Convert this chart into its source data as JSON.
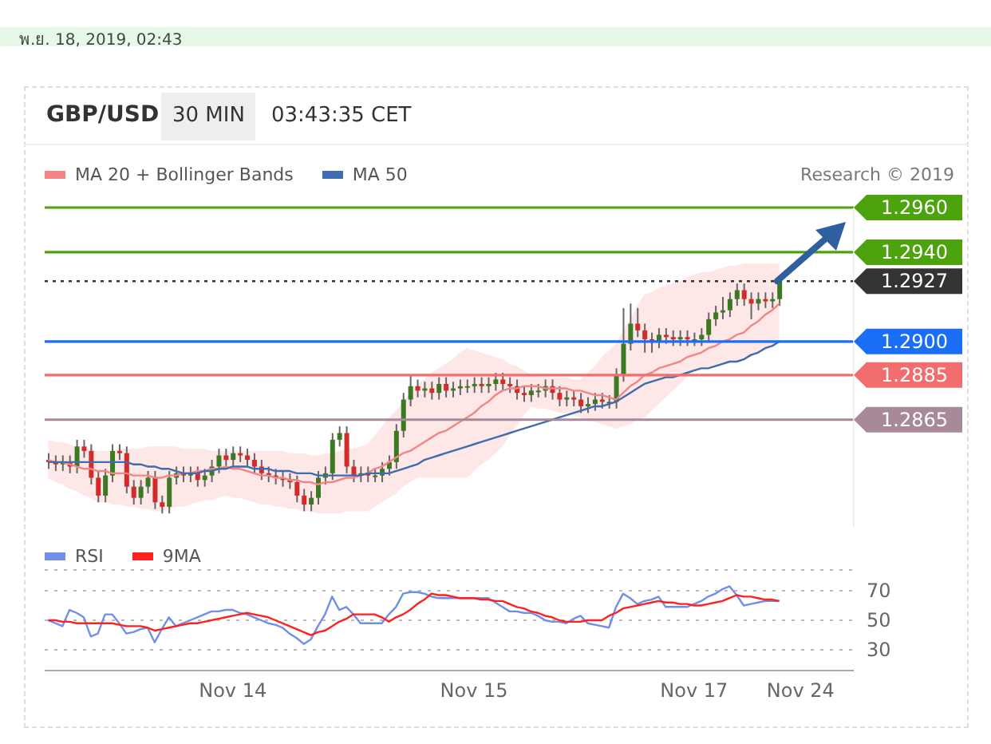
{
  "chart_data": [
    {
      "type": "candlestick",
      "title": "GBP/USD",
      "subtitle": "30 MIN",
      "annotations": [
        "พ.ย. 18, 2019, 02:43",
        "03:43:35 CET",
        "Research © 2019"
      ],
      "categories": [
        null,
        null,
        null,
        null,
        null,
        null,
        null,
        null,
        null,
        null,
        null,
        null,
        null,
        null,
        null,
        null,
        null,
        null,
        null,
        null,
        null,
        null,
        null,
        null,
        null,
        null,
        null,
        null,
        null,
        null,
        null,
        null,
        null,
        null,
        null,
        null,
        null,
        null,
        null,
        null,
        null,
        null,
        null,
        null,
        null,
        null,
        null,
        null,
        null,
        null,
        null,
        null,
        null,
        null,
        null,
        null,
        null,
        null,
        null,
        null,
        null,
        null,
        null,
        null,
        null,
        null,
        null,
        null,
        null,
        null,
        null,
        null,
        null,
        null,
        null,
        null,
        null,
        null,
        null,
        null,
        null,
        null,
        null,
        null,
        null,
        null,
        null,
        null,
        null,
        null,
        null,
        null,
        null,
        null,
        null,
        null,
        null,
        null,
        null,
        null,
        null,
        null,
        null,
        null,
        null,
        null,
        null,
        null,
        null,
        null,
        null,
        null,
        null,
        null
      ],
      "ohlc": [
        [
          1.2847,
          1.285,
          1.2843,
          1.2846
        ],
        [
          1.2846,
          1.2849,
          1.2842,
          1.2845
        ],
        [
          1.2845,
          1.2849,
          1.2842,
          1.2846
        ],
        [
          1.2846,
          1.2849,
          1.2841,
          1.2844
        ],
        [
          1.2844,
          1.2856,
          1.2841,
          1.2853
        ],
        [
          1.2853,
          1.2856,
          1.2848,
          1.2851
        ],
        [
          1.2851,
          1.2854,
          1.2836,
          1.2839
        ],
        [
          1.2839,
          1.2842,
          1.2828,
          1.2831
        ],
        [
          1.2831,
          1.2843,
          1.2828,
          1.284
        ],
        [
          1.284,
          1.2854,
          1.2837,
          1.2851
        ],
        [
          1.2851,
          1.2854,
          1.2847,
          1.285
        ],
        [
          1.285,
          1.2853,
          1.2832,
          1.2835
        ],
        [
          1.2835,
          1.2838,
          1.2827,
          1.283
        ],
        [
          1.283,
          1.2838,
          1.2827,
          1.2835
        ],
        [
          1.2835,
          1.2842,
          1.2832,
          1.2839
        ],
        [
          1.2839,
          1.2842,
          1.2825,
          1.2828
        ],
        [
          1.2828,
          1.2831,
          1.2823,
          1.2826
        ],
        [
          1.2826,
          1.2842,
          1.2823,
          1.2839
        ],
        [
          1.2839,
          1.2844,
          1.2836,
          1.2841
        ],
        [
          1.2841,
          1.2844,
          1.2837,
          1.284
        ],
        [
          1.284,
          1.2844,
          1.2837,
          1.2841
        ],
        [
          1.2841,
          1.2844,
          1.2835,
          1.2838
        ],
        [
          1.2838,
          1.2843,
          1.2835,
          1.284
        ],
        [
          1.284,
          1.2847,
          1.2837,
          1.2844
        ],
        [
          1.2844,
          1.2852,
          1.2841,
          1.2849
        ],
        [
          1.2849,
          1.2852,
          1.2844,
          1.2847
        ],
        [
          1.2847,
          1.2853,
          1.2844,
          1.285
        ],
        [
          1.285,
          1.2853,
          1.2846,
          1.2849
        ],
        [
          1.2849,
          1.2852,
          1.2844,
          1.2847
        ],
        [
          1.2847,
          1.285,
          1.2841,
          1.2844
        ],
        [
          1.2844,
          1.2847,
          1.2838,
          1.2841
        ],
        [
          1.2841,
          1.2844,
          1.2837,
          1.284
        ],
        [
          1.284,
          1.2843,
          1.2836,
          1.2839
        ],
        [
          1.2839,
          1.2842,
          1.2835,
          1.2838
        ],
        [
          1.2838,
          1.2841,
          1.2834,
          1.2837
        ],
        [
          1.2837,
          1.284,
          1.2828,
          1.2831
        ],
        [
          1.2831,
          1.2834,
          1.2824,
          1.2827
        ],
        [
          1.2827,
          1.2833,
          1.2824,
          1.283
        ],
        [
          1.283,
          1.2842,
          1.2827,
          1.2839
        ],
        [
          1.2839,
          1.2844,
          1.2836,
          1.2841
        ],
        [
          1.2841,
          1.2859,
          1.2838,
          1.2856
        ],
        [
          1.2856,
          1.2862,
          1.2853,
          1.2859
        ],
        [
          1.2859,
          1.2862,
          1.2841,
          1.2844
        ],
        [
          1.2844,
          1.2847,
          1.2837,
          1.284
        ],
        [
          1.284,
          1.2844,
          1.2837,
          1.2841
        ],
        [
          1.2841,
          1.2844,
          1.2837,
          1.284
        ],
        [
          1.284,
          1.2843,
          1.2837,
          1.284
        ],
        [
          1.284,
          1.2846,
          1.2837,
          1.2843
        ],
        [
          1.2843,
          1.2849,
          1.284,
          1.2846
        ],
        [
          1.2846,
          1.2863,
          1.2843,
          1.286
        ],
        [
          1.286,
          1.2877,
          1.2857,
          1.2874
        ],
        [
          1.2874,
          1.2885,
          1.2871,
          1.288
        ],
        [
          1.288,
          1.2883,
          1.2875,
          1.2878
        ],
        [
          1.2878,
          1.2882,
          1.2875,
          1.2879
        ],
        [
          1.2879,
          1.2882,
          1.2874,
          1.2877
        ],
        [
          1.2877,
          1.2884,
          1.2874,
          1.2881
        ],
        [
          1.2881,
          1.2884,
          1.2875,
          1.2878
        ],
        [
          1.2878,
          1.2882,
          1.2875,
          1.2879
        ],
        [
          1.2879,
          1.2883,
          1.2876,
          1.288
        ],
        [
          1.288,
          1.2883,
          1.2877,
          1.288
        ],
        [
          1.288,
          1.2884,
          1.2877,
          1.2881
        ],
        [
          1.2881,
          1.2884,
          1.2877,
          1.288
        ],
        [
          1.288,
          1.2884,
          1.2877,
          1.2881
        ],
        [
          1.2881,
          1.2886,
          1.2878,
          1.2883
        ],
        [
          1.2883,
          1.2886,
          1.2878,
          1.2881
        ],
        [
          1.2881,
          1.2884,
          1.2877,
          1.288
        ],
        [
          1.288,
          1.2883,
          1.2874,
          1.2877
        ],
        [
          1.2877,
          1.288,
          1.2873,
          1.2876
        ],
        [
          1.2876,
          1.2881,
          1.2873,
          1.2878
        ],
        [
          1.2878,
          1.2881,
          1.2875,
          1.2878
        ],
        [
          1.2878,
          1.2883,
          1.2875,
          1.288
        ],
        [
          1.288,
          1.2883,
          1.2874,
          1.2877
        ],
        [
          1.2877,
          1.288,
          1.2871,
          1.2874
        ],
        [
          1.2874,
          1.2878,
          1.2871,
          1.2875
        ],
        [
          1.2875,
          1.2878,
          1.2871,
          1.2874
        ],
        [
          1.2874,
          1.2877,
          1.2868,
          1.2871
        ],
        [
          1.2871,
          1.2875,
          1.2868,
          1.2872
        ],
        [
          1.2872,
          1.2877,
          1.2869,
          1.2874
        ],
        [
          1.2874,
          1.2877,
          1.287,
          1.2873
        ],
        [
          1.2873,
          1.2876,
          1.287,
          1.2873
        ],
        [
          1.2873,
          1.2888,
          1.287,
          1.2885
        ],
        [
          1.2885,
          1.2915,
          1.2882,
          1.2899
        ],
        [
          1.2899,
          1.2917,
          1.2896,
          1.2908
        ],
        [
          1.2908,
          1.2915,
          1.2902,
          1.2905
        ],
        [
          1.2905,
          1.2908,
          1.2895,
          1.2901
        ],
        [
          1.2901,
          1.2904,
          1.2895,
          1.29
        ],
        [
          1.29,
          1.2906,
          1.2897,
          1.2903
        ],
        [
          1.2903,
          1.2906,
          1.2899,
          1.2902
        ],
        [
          1.2902,
          1.2905,
          1.2898,
          1.2901
        ],
        [
          1.2901,
          1.2905,
          1.2898,
          1.2902
        ],
        [
          1.2902,
          1.2905,
          1.2898,
          1.2901
        ],
        [
          1.2901,
          1.2904,
          1.2898,
          1.2901
        ],
        [
          1.2901,
          1.2906,
          1.2898,
          1.2903
        ],
        [
          1.2903,
          1.2913,
          1.29,
          1.291
        ],
        [
          1.291,
          1.2916,
          1.2907,
          1.2913
        ],
        [
          1.2913,
          1.292,
          1.291,
          1.2914
        ],
        [
          1.2914,
          1.2922,
          1.2911,
          1.2919
        ],
        [
          1.2919,
          1.2926,
          1.2916,
          1.2923
        ],
        [
          1.2923,
          1.2926,
          1.2916,
          1.2919
        ],
        [
          1.2919,
          1.2922,
          1.291,
          1.2917
        ],
        [
          1.2917,
          1.2922,
          1.2914,
          1.2919
        ],
        [
          1.2919,
          1.2922,
          1.2915,
          1.2918
        ],
        [
          1.2918,
          1.2922,
          1.2915,
          1.2919
        ],
        [
          1.2919,
          1.2929,
          1.2916,
          1.2927
        ],
        null,
        null,
        null,
        null,
        null,
        null,
        null,
        null,
        null,
        null
      ],
      "series": [
        {
          "type": "line",
          "name": "MA 20 + Bollinger Bands",
          "color": "#f38585",
          "values": [
            1.2847,
            1.2846,
            1.2846,
            1.2845,
            1.2844,
            1.2843,
            1.2843,
            1.2842,
            1.2842,
            1.2841,
            1.2841,
            1.2841,
            1.284,
            1.284,
            1.284,
            1.2839,
            1.2839,
            1.284,
            1.284,
            1.2841,
            1.2841,
            1.2842,
            1.2842,
            1.2843,
            1.2843,
            1.2844,
            1.2843,
            1.2843,
            1.2842,
            1.2841,
            1.284,
            1.284,
            1.2839,
            1.2839,
            1.2838,
            1.2838,
            1.2837,
            1.2837,
            1.2836,
            1.2837,
            1.2837,
            1.2838,
            1.2839,
            1.2839,
            1.284,
            1.2841,
            1.2843,
            1.2844,
            1.2846,
            1.2848,
            1.285,
            1.2851,
            1.2853,
            1.2855,
            1.2857,
            1.2859,
            1.286,
            1.2862,
            1.2864,
            1.2866,
            1.2868,
            1.2871,
            1.2873,
            1.2876,
            1.2878,
            1.2879,
            1.2879,
            1.288,
            1.288,
            1.288,
            1.2879,
            1.2879,
            1.2879,
            1.2879,
            1.2878,
            1.2878,
            1.2877,
            1.2876,
            1.2876,
            1.2875,
            1.2874,
            1.2877,
            1.288,
            1.2882,
            1.2885,
            1.2886,
            1.2888,
            1.2889,
            1.289,
            1.2891,
            1.2893,
            1.2894,
            1.2895,
            1.2897,
            1.2898,
            1.29,
            1.2901,
            1.2903,
            1.2904,
            1.2907,
            1.2909,
            1.2912,
            1.2914,
            1.2917,
            null,
            null,
            null,
            null,
            null,
            null,
            null,
            null,
            null,
            null
          ],
          "lower": [
            1.2839,
            1.2837,
            1.2836,
            1.2834,
            1.2833,
            1.2831,
            1.283,
            1.2828,
            1.2828,
            1.2827,
            1.2827,
            1.2826,
            1.2826,
            1.2825,
            1.2825,
            1.2824,
            1.2824,
            1.2825,
            1.2826,
            1.2826,
            1.2827,
            1.2828,
            1.2829,
            1.2829,
            1.283,
            1.2831,
            1.283,
            1.283,
            1.2829,
            1.2828,
            1.2827,
            1.2827,
            1.2826,
            1.2826,
            1.2825,
            1.2825,
            1.2824,
            1.2824,
            1.2823,
            1.2823,
            1.2823,
            1.2823,
            1.2824,
            1.2824,
            1.2824,
            1.2824,
            1.2826,
            1.2828,
            1.283,
            1.2832,
            1.2835,
            1.2837,
            1.2839,
            1.2839,
            1.2839,
            1.2839,
            1.2839,
            1.2839,
            1.2839,
            1.2839,
            1.2842,
            1.2845,
            1.2847,
            1.285,
            1.2853,
            1.2858,
            1.2862,
            1.2867,
            1.2871,
            1.287,
            1.287,
            1.2869,
            1.2868,
            1.2868,
            1.2867,
            1.2866,
            1.2865,
            1.2864,
            1.2863,
            1.2862,
            1.2861,
            1.2862,
            1.2863,
            1.2865,
            1.2866,
            1.2869,
            1.2872,
            1.2875,
            1.2878,
            1.2881,
            1.2884,
            1.2887,
            1.2888,
            1.2888,
            1.2889,
            1.289,
            1.2891,
            1.2891,
            1.2892,
            1.2893,
            1.2895,
            1.2896,
            1.2898,
            1.2899,
            null,
            null,
            null,
            null,
            null,
            null,
            null,
            null,
            null,
            null
          ],
          "upper": [
            1.2856,
            1.2855,
            1.2855,
            1.2854,
            1.2853,
            1.2852,
            1.2852,
            1.2851,
            1.2851,
            1.2851,
            1.2852,
            1.2852,
            1.2852,
            1.2852,
            1.2853,
            1.2853,
            1.2853,
            1.2853,
            1.2853,
            1.2852,
            1.2852,
            1.2852,
            1.2852,
            1.2851,
            1.2851,
            1.2851,
            1.2851,
            1.2851,
            1.2851,
            1.2851,
            1.2851,
            1.2851,
            1.2851,
            1.2851,
            1.285,
            1.285,
            1.285,
            1.2849,
            1.2849,
            1.285,
            1.285,
            1.2851,
            1.2852,
            1.2852,
            1.2853,
            1.2854,
            1.2858,
            1.2862,
            1.2866,
            1.2869,
            1.2873,
            1.2877,
            1.2881,
            1.2883,
            1.2886,
            1.2888,
            1.289,
            1.2892,
            1.2895,
            1.2897,
            1.2896,
            1.2895,
            1.2894,
            1.2893,
            1.2892,
            1.289,
            1.2889,
            1.2887,
            1.2885,
            1.2885,
            1.2884,
            1.2884,
            1.2884,
            1.2884,
            1.2883,
            1.2883,
            1.2886,
            1.2889,
            1.2893,
            1.2896,
            1.2899,
            1.2905,
            1.291,
            1.2916,
            1.2921,
            1.2922,
            1.2924,
            1.2925,
            1.2926,
            1.2927,
            1.2929,
            1.293,
            1.2931,
            1.2931,
            1.2932,
            1.2933,
            1.2934,
            1.2934,
            1.2935,
            1.2935,
            1.2935,
            1.2935,
            1.2935,
            1.2935,
            null,
            null,
            null,
            null,
            null,
            null,
            null,
            null,
            null,
            null
          ]
        },
        {
          "type": "line",
          "name": "MA 50",
          "color": "#3f6cb0",
          "values": [
            1.2846,
            1.2846,
            1.2846,
            1.2846,
            1.2846,
            1.2846,
            1.2846,
            1.2846,
            1.2846,
            1.2846,
            1.2846,
            1.2846,
            1.2845,
            1.2845,
            1.2844,
            1.2844,
            1.2843,
            1.2843,
            1.2842,
            1.2841,
            1.2841,
            1.2841,
            1.2842,
            1.2842,
            1.2843,
            1.2843,
            1.2844,
            1.2844,
            1.2844,
            1.2843,
            1.2843,
            1.2843,
            1.2842,
            1.2842,
            1.2842,
            1.2841,
            1.2841,
            1.2841,
            1.284,
            1.284,
            1.284,
            1.284,
            1.284,
            1.284,
            1.284,
            1.2841,
            1.2841,
            1.2841,
            1.2841,
            1.2842,
            1.2843,
            1.2844,
            1.2845,
            1.2847,
            1.2848,
            1.2849,
            1.285,
            1.2851,
            1.2852,
            1.2853,
            1.2854,
            1.2855,
            1.2856,
            1.2857,
            1.2858,
            1.2859,
            1.286,
            1.2861,
            1.2862,
            1.2863,
            1.2864,
            1.2865,
            1.2866,
            1.2867,
            1.2868,
            1.2869,
            1.287,
            1.2871,
            1.2871,
            1.2872,
            1.2873,
            1.2875,
            1.2877,
            1.2879,
            1.2881,
            1.2882,
            1.2883,
            1.2884,
            1.2884,
            1.2885,
            1.2886,
            1.2887,
            1.2888,
            1.2888,
            1.2889,
            1.289,
            1.2891,
            1.2891,
            1.2892,
            1.2894,
            1.2895,
            1.2897,
            1.2898,
            1.29,
            null,
            null,
            null,
            null,
            null,
            null,
            null,
            null,
            null,
            null
          ]
        }
      ],
      "ref_lines": [
        {
          "axis": "y",
          "value": 1.296,
          "color": "#4ca30d",
          "line_style": "solid"
        },
        {
          "axis": "y",
          "value": 1.294,
          "color": "#4ca30d",
          "line_style": "solid"
        },
        {
          "axis": "y",
          "value": 1.2927,
          "color": "#333333",
          "line_style": "dotted"
        },
        {
          "axis": "y",
          "value": 1.29,
          "color": "#1a6ef5",
          "line_style": "solid"
        },
        {
          "axis": "y",
          "value": 1.2885,
          "color": "#f26d6d",
          "line_style": "solid"
        },
        {
          "axis": "y",
          "value": 1.2865,
          "color": "#a8899a",
          "line_style": "solid"
        }
      ],
      "yticks": [
        1.2865,
        1.2885,
        {
          "value": 1.29,
          "label": "1.2900"
        },
        1.2927,
        {
          "value": 1.294,
          "label": "1.2940"
        },
        {
          "value": 1.296,
          "label": "1.2960"
        }
      ],
      "ylim": [
        1.2817,
        1.296
      ],
      "tick_labels": "y",
      "legend": "top left",
      "marker": "none"
    },
    {
      "type": "line",
      "categories": [
        null,
        null,
        null,
        null,
        null,
        null,
        null,
        null,
        null,
        null,
        null,
        null,
        null,
        null,
        null,
        null,
        null,
        null,
        null,
        null,
        null,
        null,
        null,
        null,
        null,
        null,
        "Nov 14",
        null,
        null,
        null,
        null,
        null,
        null,
        null,
        null,
        null,
        null,
        null,
        null,
        null,
        null,
        null,
        null,
        null,
        null,
        null,
        null,
        null,
        null,
        null,
        null,
        null,
        null,
        null,
        null,
        null,
        null,
        null,
        null,
        null,
        "Nov 15",
        null,
        null,
        null,
        null,
        null,
        null,
        null,
        null,
        null,
        null,
        null,
        null,
        null,
        null,
        null,
        null,
        null,
        null,
        null,
        null,
        null,
        null,
        null,
        null,
        null,
        null,
        null,
        null,
        null,
        null,
        "Nov 17",
        null,
        null,
        null,
        null,
        null,
        null,
        null,
        null,
        null,
        null,
        null,
        null,
        null,
        null,
        "Nov 24",
        null,
        null,
        null,
        null,
        null,
        null,
        null
      ],
      "series": [
        {
          "name": "RSI",
          "color": "#6f8fe8",
          "values": [
            50,
            48,
            46,
            57,
            55,
            52,
            39,
            41,
            54,
            54,
            48,
            41,
            42,
            44,
            45,
            35,
            44,
            52,
            46,
            48,
            50,
            52,
            54,
            56,
            56,
            57,
            57,
            55,
            54,
            52,
            50,
            48,
            47,
            45,
            41,
            38,
            34,
            37,
            46,
            54,
            66,
            57,
            59,
            54,
            48,
            48,
            48,
            48,
            54,
            59,
            68,
            69,
            69,
            68,
            66,
            65,
            65,
            65,
            65,
            65,
            65,
            65,
            65,
            62,
            59,
            56,
            56,
            55,
            55,
            53,
            50,
            49,
            49,
            48,
            51,
            53,
            48,
            47,
            46,
            45,
            59,
            68,
            65,
            61,
            63,
            64,
            66,
            59,
            59,
            59,
            59,
            61,
            63,
            66,
            68,
            71,
            73,
            67,
            60,
            61,
            62,
            63,
            63,
            63,
            null,
            null,
            null,
            null,
            null,
            null,
            null,
            null,
            null,
            null
          ]
        },
        {
          "name": "9MA",
          "color": "#ff2020",
          "values": [
            50,
            50,
            49,
            49,
            48,
            48,
            48,
            48,
            48,
            48,
            47,
            46,
            46,
            46,
            45,
            43,
            44,
            45,
            46,
            47,
            48,
            48,
            49,
            50,
            51,
            52,
            53,
            54,
            55,
            54,
            53,
            52,
            50,
            48,
            46,
            44,
            42,
            40,
            42,
            43,
            46,
            49,
            51,
            54,
            54,
            54,
            54,
            52,
            49,
            52,
            54,
            57,
            61,
            64,
            68,
            67,
            67,
            66,
            65,
            65,
            65,
            64,
            64,
            63,
            63,
            61,
            59,
            58,
            56,
            55,
            53,
            52,
            50,
            49,
            49,
            49,
            50,
            50,
            50,
            53,
            55,
            58,
            59,
            60,
            61,
            62,
            63,
            62,
            62,
            61,
            61,
            60,
            60,
            61,
            62,
            63,
            65,
            67,
            66,
            66,
            65,
            64,
            64,
            63,
            null,
            null,
            null,
            null,
            null,
            null,
            null,
            null,
            null,
            null
          ]
        }
      ],
      "ylim": [
        16,
        84
      ],
      "yticks": [
        30,
        50,
        70
      ],
      "grid": "y",
      "legend": "top left",
      "marker": "none"
    }
  ]
}
